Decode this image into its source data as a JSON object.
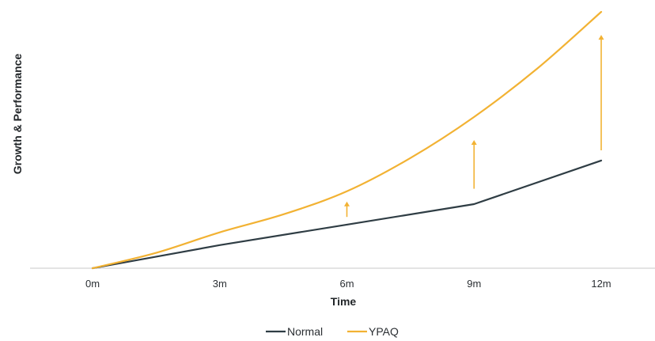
{
  "chart_data": {
    "type": "line",
    "title": "",
    "xlabel": "Time",
    "ylabel": "Growth & Performance",
    "categories": [
      "0m",
      "3m",
      "6m",
      "9m",
      "12m"
    ],
    "x": [
      0,
      3,
      6,
      9,
      12
    ],
    "ylim": [
      0,
      100
    ],
    "grid": false,
    "y_tick_labels": false,
    "legend": "bottom-center",
    "series": [
      {
        "name": "Normal",
        "color": "#2f3d44",
        "x": [
          0,
          3,
          6,
          9,
          12
        ],
        "y": [
          0,
          9,
          17,
          25,
          42
        ]
      },
      {
        "name": "YPAQ",
        "color": "#f2b233",
        "x": [
          0,
          1.5,
          3,
          4.5,
          6,
          7.5,
          9,
          10.5,
          12
        ],
        "y": [
          0,
          6,
          14,
          21,
          30,
          43,
          59,
          78,
          100
        ]
      }
    ],
    "annotations": [
      {
        "type": "arrow",
        "x": 6,
        "from": 20,
        "to": 26,
        "color": "#f2b233"
      },
      {
        "type": "arrow",
        "x": 9,
        "from": 31,
        "to": 50,
        "color": "#f2b233"
      },
      {
        "type": "arrow",
        "x": 12,
        "from": 46,
        "to": 91,
        "color": "#f2b233"
      }
    ],
    "axis_color": "#c8c8c8"
  }
}
